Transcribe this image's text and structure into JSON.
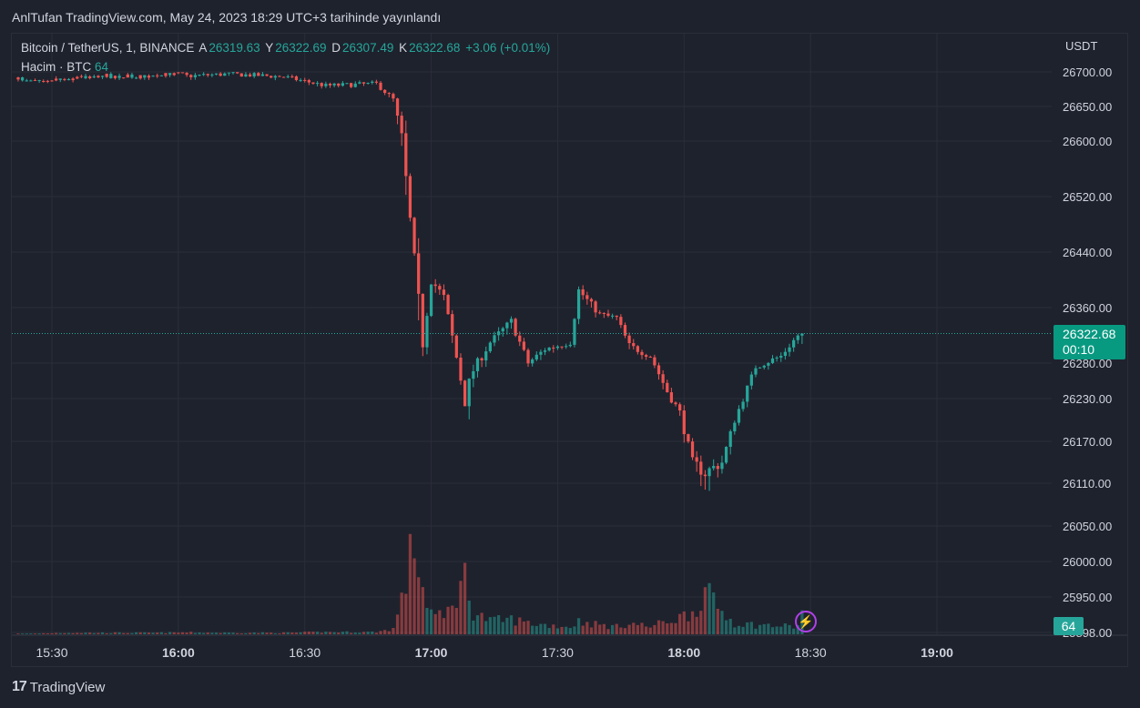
{
  "caption": "AnlTufan TradingView.com, May 24, 2023 18:29 UTC+3 tarihinde yayınlandı",
  "legend": {
    "symbol": "Bitcoin / TetherUS, 1, BINANCE",
    "o_label": "A",
    "o_value": "26319.63",
    "h_label": "Y",
    "h_value": "26322.69",
    "l_label": "D",
    "l_value": "26307.49",
    "c_label": "K",
    "c_value": "26322.68",
    "change": "+3.06 (+0.01%)"
  },
  "volume_legend": {
    "label": "Hacim · BTC",
    "value": "64"
  },
  "currency": "USDT",
  "price_badge": {
    "price": "26322.68",
    "countdown": "00:10"
  },
  "volume_badge": "64",
  "footer": {
    "brand": "TradingView"
  },
  "colors": {
    "up": "#26a69a",
    "down": "#ef5350",
    "background": "#1e222d",
    "grid": "#2a2e39"
  },
  "icons": {
    "bolt": "lightning-icon",
    "logo": "tradingview-logo-icon"
  },
  "chart_data": {
    "type": "candlestick",
    "ylim": [
      25898,
      26730
    ],
    "y_ticks": [
      {
        "label": "26700.00",
        "value": 26700
      },
      {
        "label": "26650.00",
        "value": 26650
      },
      {
        "label": "26600.00",
        "value": 26600
      },
      {
        "label": "26520.00",
        "value": 26520
      },
      {
        "label": "26440.00",
        "value": 26440
      },
      {
        "label": "26360.00",
        "value": 26360
      },
      {
        "label": "26280.00",
        "value": 26280
      },
      {
        "label": "26230.00",
        "value": 26230
      },
      {
        "label": "26170.00",
        "value": 26170
      },
      {
        "label": "26110.00",
        "value": 26110
      },
      {
        "label": "26050.00",
        "value": 26050
      },
      {
        "label": "26000.00",
        "value": 26000
      },
      {
        "label": "25950.00",
        "value": 25950
      },
      {
        "label": "25898.00",
        "value": 25898
      }
    ],
    "x_ticks": [
      {
        "label": "15:30",
        "t": 930
      },
      {
        "label": "16:00",
        "t": 960,
        "bold": true
      },
      {
        "label": "16:30",
        "t": 990
      },
      {
        "label": "17:00",
        "t": 1020,
        "bold": true
      },
      {
        "label": "17:30",
        "t": 1050
      },
      {
        "label": "18:00",
        "t": 1080,
        "bold": true
      },
      {
        "label": "18:30",
        "t": 1110
      },
      {
        "label": "19:00",
        "t": 1140,
        "bold": true
      }
    ],
    "x_range_minutes": [
      922.5,
      1163
    ],
    "last_price": 26322.68,
    "vol_max": 400,
    "anchors": [
      [
        922,
        26711,
        1
      ],
      [
        933,
        26710,
        4
      ],
      [
        940,
        26705,
        4
      ],
      [
        955,
        26708,
        4
      ],
      [
        962,
        26694,
        5
      ],
      [
        972,
        26697,
        4
      ],
      [
        985,
        26693,
        4
      ],
      [
        995,
        26680,
        6
      ],
      [
        1007,
        26683,
        6
      ],
      [
        1011,
        26660,
        15
      ],
      [
        1013,
        26605,
        90
      ],
      [
        1016,
        26420,
        250
      ],
      [
        1018,
        26310,
        120
      ],
      [
        1020,
        26400,
        60
      ],
      [
        1023,
        26375,
        40
      ],
      [
        1028,
        26230,
        150
      ],
      [
        1030,
        26270,
        60
      ],
      [
        1034,
        26310,
        35
      ],
      [
        1039,
        26340,
        40
      ],
      [
        1043,
        26280,
        30
      ],
      [
        1047,
        26300,
        25
      ],
      [
        1053,
        26310,
        20
      ],
      [
        1055,
        26385,
        35
      ],
      [
        1060,
        26350,
        25
      ],
      [
        1064,
        26345,
        20
      ],
      [
        1067,
        26305,
        30
      ],
      [
        1072,
        26290,
        20
      ],
      [
        1076,
        26240,
        35
      ],
      [
        1079,
        26210,
        45
      ],
      [
        1082,
        26140,
        60
      ],
      [
        1085,
        26125,
        110
      ],
      [
        1089,
        26140,
        60
      ],
      [
        1092,
        26200,
        30
      ],
      [
        1097,
        26275,
        25
      ],
      [
        1103,
        26290,
        22
      ],
      [
        1107,
        26320,
        20
      ],
      [
        1108,
        26323,
        64
      ]
    ]
  }
}
